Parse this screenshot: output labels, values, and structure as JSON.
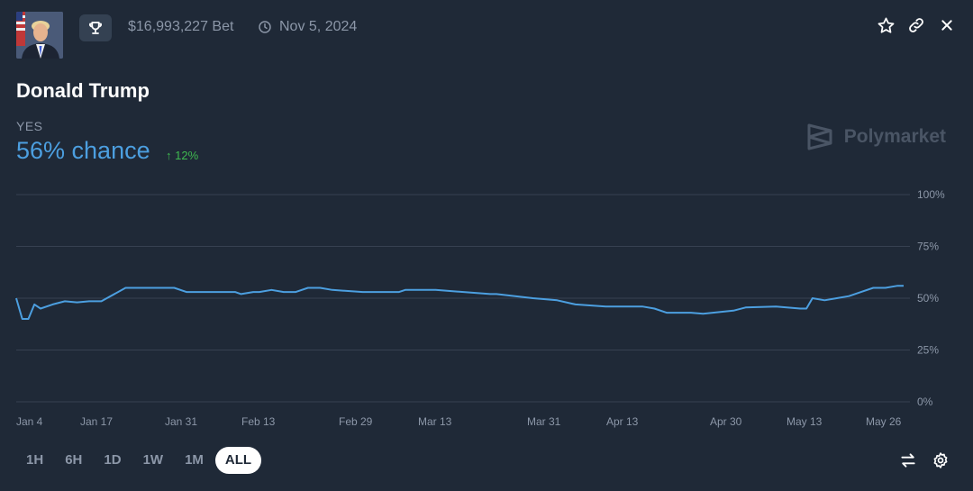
{
  "header": {
    "bet_volume": "$16,993,227 Bet",
    "end_date": "Nov 5, 2024",
    "icons": [
      "trophy-icon",
      "clock-icon",
      "star-icon",
      "link-icon",
      "close-icon"
    ]
  },
  "market": {
    "title": "Donald Trump",
    "outcome_label": "YES",
    "chance": "56% chance",
    "change": "12%"
  },
  "brand": {
    "name": "Polymarket"
  },
  "chart_data": {
    "type": "line",
    "x_tick_labels": [
      "Jan 4",
      "Jan 17",
      "Jan 31",
      "Feb 13",
      "Feb 29",
      "Mar 13",
      "Mar 31",
      "Apr 13",
      "Apr 30",
      "May 13",
      "May 26"
    ],
    "y_tick_labels": [
      "100%",
      "75%",
      "50%",
      "25%",
      "0%"
    ],
    "ylim": [
      0,
      100
    ],
    "grid": true,
    "line_color": "#4c9fe0",
    "series": [
      {
        "x": [
          "2024-01-04",
          "2024-01-05",
          "2024-01-06",
          "2024-01-07",
          "2024-01-08",
          "2024-01-10",
          "2024-01-12",
          "2024-01-14",
          "2024-01-16",
          "2024-01-18",
          "2024-01-22",
          "2024-01-23",
          "2024-01-26",
          "2024-01-30",
          "2024-02-01",
          "2024-02-09",
          "2024-02-10",
          "2024-02-12",
          "2024-02-13",
          "2024-02-15",
          "2024-02-17",
          "2024-02-19",
          "2024-02-21",
          "2024-02-23",
          "2024-02-25",
          "2024-03-01",
          "2024-03-07",
          "2024-03-08",
          "2024-03-13",
          "2024-03-22",
          "2024-03-23",
          "2024-03-29",
          "2024-04-02",
          "2024-04-05",
          "2024-04-10",
          "2024-04-16",
          "2024-04-18",
          "2024-04-20",
          "2024-04-24",
          "2024-04-26",
          "2024-05-01",
          "2024-05-03",
          "2024-05-08",
          "2024-05-12",
          "2024-05-13",
          "2024-05-14",
          "2024-05-16",
          "2024-05-18",
          "2024-05-20",
          "2024-05-22",
          "2024-05-24",
          "2024-05-26",
          "2024-05-28",
          "2024-05-29"
        ],
        "y": [
          50,
          40,
          40,
          47,
          45,
          47,
          48.5,
          48,
          48.5,
          48.5,
          55,
          55,
          55,
          55,
          53,
          53,
          52,
          53,
          53,
          54,
          53,
          53,
          55,
          55,
          54,
          53,
          53,
          54,
          54,
          52,
          52,
          50,
          49,
          47,
          46,
          46,
          45,
          43,
          43,
          42.5,
          44,
          45.5,
          46,
          45,
          45,
          50,
          49,
          50,
          51,
          53,
          55,
          55,
          56,
          56
        ]
      }
    ]
  },
  "timeframes": [
    "1H",
    "6H",
    "1D",
    "1W",
    "1M",
    "ALL"
  ],
  "active_timeframe": "ALL"
}
